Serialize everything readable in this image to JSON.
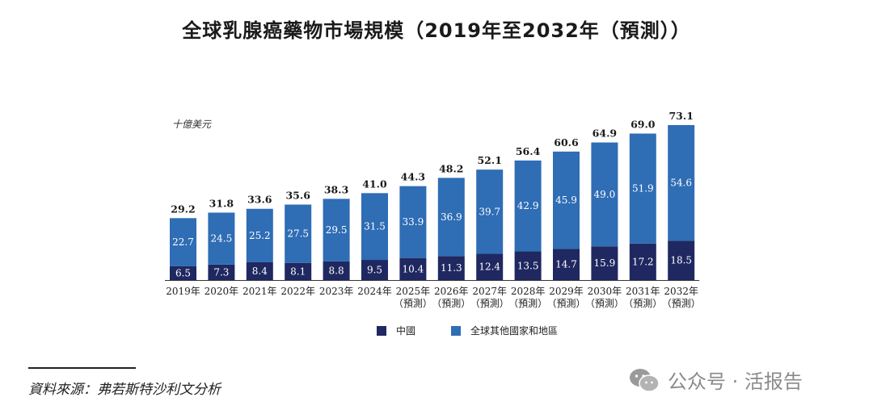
{
  "title": "全球乳腺癌藥物市場規模（2019年至2032年（預測））",
  "unit_label": "十億美元",
  "colors": {
    "china": "#1f2860",
    "rest_of_world": "#2f6db5"
  },
  "chart_data": {
    "type": "bar",
    "stacked": true,
    "categories": [
      {
        "year": "2019年",
        "note": ""
      },
      {
        "year": "2020年",
        "note": ""
      },
      {
        "year": "2021年",
        "note": ""
      },
      {
        "year": "2022年",
        "note": ""
      },
      {
        "year": "2023年",
        "note": ""
      },
      {
        "year": "2024年",
        "note": ""
      },
      {
        "year": "2025年",
        "note": "（預測）"
      },
      {
        "year": "2026年",
        "note": "（預測）"
      },
      {
        "year": "2027年",
        "note": "（預測）"
      },
      {
        "year": "2028年",
        "note": "（預測）"
      },
      {
        "year": "2029年",
        "note": "（預測）"
      },
      {
        "year": "2030年",
        "note": "（預測）"
      },
      {
        "year": "2031年",
        "note": "（預測）"
      },
      {
        "year": "2032年",
        "note": "（預測）"
      }
    ],
    "series": [
      {
        "name": "中國",
        "values": [
          "6.5",
          "7.3",
          "8.4",
          "8.1",
          "8.8",
          "9.5",
          "10.4",
          "11.3",
          "12.4",
          "13.5",
          "14.7",
          "15.9",
          "17.2",
          "18.5"
        ]
      },
      {
        "name": "全球其他國家和地區",
        "values": [
          "22.7",
          "24.5",
          "25.2",
          "27.5",
          "29.5",
          "31.5",
          "33.9",
          "36.9",
          "39.7",
          "42.9",
          "45.9",
          "49.0",
          "51.9",
          "54.6"
        ]
      }
    ],
    "totals": [
      "29.2",
      "31.8",
      "33.6",
      "35.6",
      "38.3",
      "41.0",
      "44.3",
      "48.2",
      "52.1",
      "56.4",
      "60.6",
      "64.9",
      "69.0",
      "73.1"
    ],
    "ylim": [
      0,
      73.1
    ],
    "grid": false,
    "legend_position": "bottom"
  },
  "legend": [
    {
      "label": "中國"
    },
    {
      "label": "全球其他國家和地區"
    }
  ],
  "source": "資料來源：弗若斯特沙利文分析",
  "watermark": "公众号 · 活报告"
}
